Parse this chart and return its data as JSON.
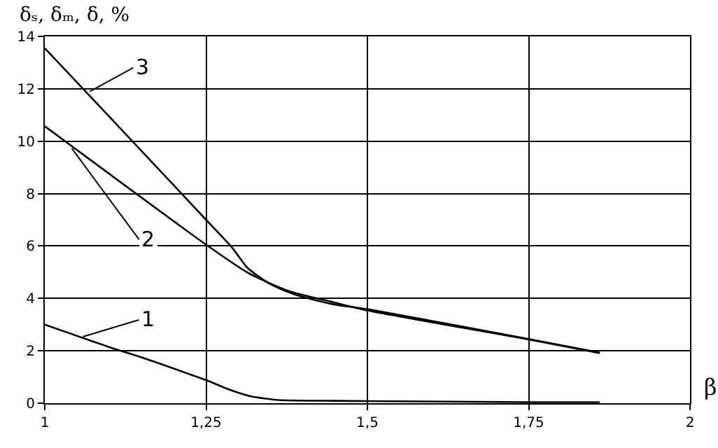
{
  "chart_data": {
    "type": "line",
    "xlabel": "β",
    "ylabel": "δₛ, δₘ, δ, %",
    "xlim": [
      1,
      2
    ],
    "ylim": [
      0,
      14
    ],
    "xticks": [
      1,
      {
        "value": 1.25,
        "label": "1,25"
      },
      {
        "value": 1.5,
        "label": "1,5"
      },
      {
        "value": 1.75,
        "label": "1,75"
      },
      2
    ],
    "yticks": [
      0,
      2,
      4,
      6,
      8,
      10,
      12,
      14
    ],
    "grid": true,
    "marker": "none",
    "line_style": "solid",
    "series": [
      {
        "color": "#000000",
        "x": [
          1,
          1.1,
          1.15,
          1.25,
          1.285,
          1.32,
          1.363,
          1.45,
          1.5,
          1.75,
          1.86
        ],
        "values": [
          3.0,
          2.14,
          1.75,
          0.88,
          0.53,
          0.26,
          0.12,
          0.09,
          0.08,
          0.04,
          0.04
        ]
      },
      {
        "color": "#000000",
        "x": [
          1,
          1.25,
          1.314,
          1.377,
          1.448,
          1.5,
          1.75,
          1.86
        ],
        "values": [
          10.57,
          6.05,
          4.99,
          4.29,
          3.85,
          3.54,
          2.43,
          1.91
        ]
      },
      {
        "color": "#000000",
        "x": [
          1,
          1.1,
          1.25,
          1.29,
          1.314,
          1.349,
          1.391,
          1.448,
          1.5,
          1.75,
          1.86
        ],
        "values": [
          13.55,
          10.94,
          7.0,
          5.95,
          5.17,
          4.55,
          4.12,
          3.77,
          3.59,
          2.45,
          1.93
        ]
      }
    ],
    "annotations": [
      {
        "text": "1",
        "x": 1.059,
        "y": 2.54
      },
      {
        "text": "2",
        "x": 1.042,
        "y": 9.72
      },
      {
        "text": "3",
        "x": 1.07,
        "y": 11.9
      }
    ]
  }
}
